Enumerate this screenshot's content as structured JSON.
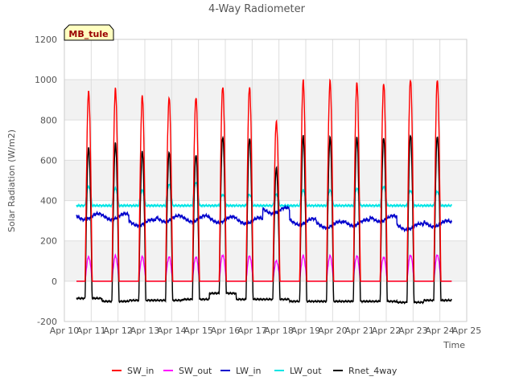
{
  "chart_data": {
    "type": "line",
    "title": "4-Way Radiometer",
    "xlabel": "Time",
    "ylabel": "Solar Radiation (W/m2)",
    "xlim": [
      10,
      25
    ],
    "ylim": [
      -200,
      1200
    ],
    "x_ticks": [
      {
        "value": 10,
        "label": "Apr 10"
      },
      {
        "value": 11,
        "label": "Apr 11"
      },
      {
        "value": 12,
        "label": "Apr 12"
      },
      {
        "value": 13,
        "label": "Apr 13"
      },
      {
        "value": 14,
        "label": "Apr 14"
      },
      {
        "value": 15,
        "label": "Apr 15"
      },
      {
        "value": 16,
        "label": "Apr 16"
      },
      {
        "value": 17,
        "label": "Apr 17"
      },
      {
        "value": 18,
        "label": "Apr 18"
      },
      {
        "value": 19,
        "label": "Apr 19"
      },
      {
        "value": 20,
        "label": "Apr 20"
      },
      {
        "value": 21,
        "label": "Apr 21"
      },
      {
        "value": 22,
        "label": "Apr 22"
      },
      {
        "value": 23,
        "label": "Apr 23"
      },
      {
        "value": 24,
        "label": "Apr 24"
      },
      {
        "value": 25,
        "label": "Apr 25"
      }
    ],
    "y_ticks": [
      {
        "value": -200,
        "label": "-200"
      },
      {
        "value": 0,
        "label": "0"
      },
      {
        "value": 200,
        "label": "200"
      },
      {
        "value": 400,
        "label": "400"
      },
      {
        "value": 600,
        "label": "600"
      },
      {
        "value": 800,
        "label": "800"
      },
      {
        "value": 1000,
        "label": "1000"
      },
      {
        "value": 1200,
        "label": "1200"
      }
    ],
    "grid": true,
    "legend_position": "bottom",
    "annotation": "MB_tule",
    "days": [
      10.9,
      11.9,
      12.9,
      13.9,
      14.9,
      15.9,
      16.9,
      17.9,
      18.9,
      19.9,
      20.9,
      21.9,
      22.9,
      23.9
    ],
    "series": [
      {
        "name": "SW_in",
        "color": "#ff0000",
        "noon_peak": [
          940,
          950,
          915,
          910,
          915,
          970,
          965,
          790,
          990,
          990,
          985,
          985,
          1005,
          1000
        ]
      },
      {
        "name": "SW_out",
        "color": "#ff00ff",
        "noon_peak": [
          120,
          125,
          120,
          120,
          120,
          130,
          125,
          100,
          125,
          125,
          125,
          120,
          130,
          130
        ]
      },
      {
        "name": "LW_in",
        "color": "#0000cc",
        "daily_mean": [
          320,
          320,
          290,
          310,
          310,
          305,
          300,
          350,
          295,
          280,
          290,
          310,
          270,
          285
        ]
      },
      {
        "name": "LW_out",
        "color": "#00e5e5",
        "noon_peak": [
          470,
          460,
          450,
          480,
          490,
          430,
          430,
          430,
          450,
          450,
          460,
          470,
          450,
          445
        ]
      },
      {
        "name": "Rnet_4way",
        "color": "#000000",
        "noon_peak": [
          660,
          680,
          640,
          640,
          630,
          720,
          710,
          560,
          715,
          710,
          715,
          715,
          730,
          720
        ],
        "night": [
          -85,
          -100,
          -95,
          -95,
          -90,
          -60,
          -90,
          -90,
          -100,
          -100,
          -100,
          -100,
          -105,
          -95
        ]
      }
    ]
  }
}
